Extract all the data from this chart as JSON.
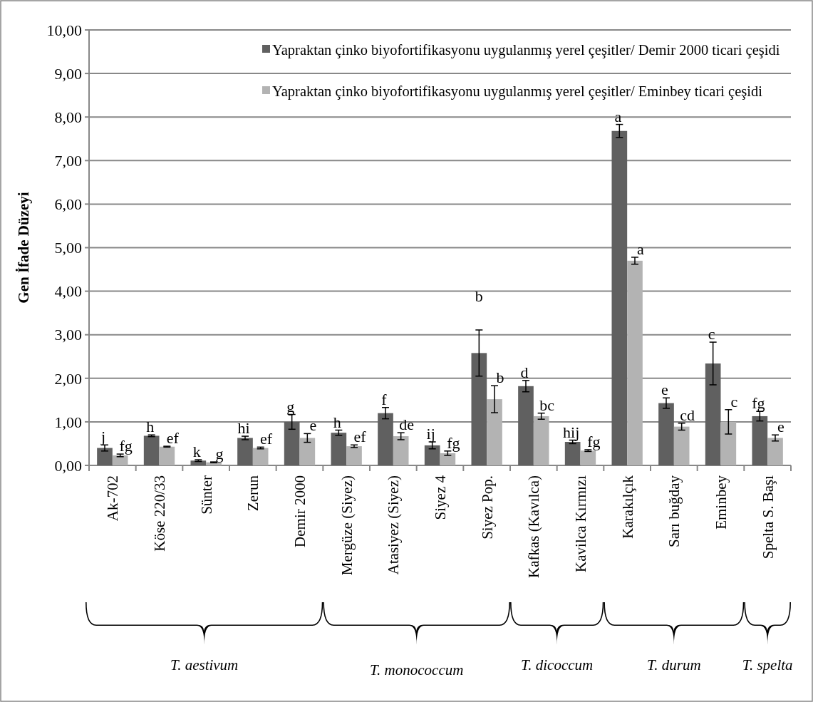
{
  "chart_data": {
    "type": "bar",
    "ylabel": "Gen İfade Düzeyi",
    "categories": [
      "Ak-702",
      "Köse 220/33",
      "Sünter",
      "Zerun",
      "Demir 2000",
      "Mergüze (Siyez)",
      "Atasiyez (Siyez)",
      "Siyez 4",
      "Siyez Pop.",
      "Kafkas (Kavılca)",
      "Kavilca Kırmızı",
      "Karakılçık",
      "Sarı buğday",
      "Eminbey",
      "Spelta S. Başı"
    ],
    "series": [
      {
        "name": "Yapraktan çinko biyofortifikasyonu uygulanmış yerel çeşitler/ Demir 2000 ticari çeşidi",
        "color": "#606060",
        "values": [
          0.4,
          0.68,
          0.11,
          0.63,
          1.0,
          0.75,
          1.2,
          0.46,
          2.58,
          1.82,
          0.54,
          7.68,
          1.43,
          2.34,
          1.13
        ],
        "errors": [
          0.07,
          0.02,
          0.02,
          0.04,
          0.17,
          0.06,
          0.13,
          0.08,
          0.53,
          0.13,
          0.04,
          0.15,
          0.12,
          0.49,
          0.11
        ]
      },
      {
        "name": "Yapraktan çinko biyofortifikasyonu uygulanmış yerel çeşitler/ Eminbey ticari çeşidi",
        "color": "#b3b3b3",
        "values": [
          0.23,
          0.43,
          0.07,
          0.4,
          0.63,
          0.44,
          0.67,
          0.28,
          1.52,
          1.13,
          0.34,
          4.7,
          0.89,
          1.0,
          0.63
        ],
        "errors": [
          0.03,
          0.01,
          0.01,
          0.02,
          0.1,
          0.03,
          0.08,
          0.05,
          0.31,
          0.07,
          0.02,
          0.08,
          0.08,
          0.28,
          0.07
        ]
      }
    ],
    "ylim": [
      0,
      10
    ],
    "yticks": [
      {
        "value": 0,
        "label": "0,00"
      },
      {
        "value": 1,
        "label": "1,00"
      },
      {
        "value": 2,
        "label": "2,00"
      },
      {
        "value": 3,
        "label": "3,00"
      },
      {
        "value": 4,
        "label": "4,00"
      },
      {
        "value": 5,
        "label": "5,00"
      },
      {
        "value": 6,
        "label": "6,00"
      },
      {
        "value": 7,
        "label": "7,00"
      },
      {
        "value": 8,
        "label": "8,00"
      },
      {
        "value": 9,
        "label": "9,00"
      },
      {
        "value": 10,
        "label": "10,00"
      }
    ],
    "grid": "y",
    "legend": "top right",
    "annotations": [
      {
        "text": "j",
        "x": "Ak-702",
        "y": 0.4
      },
      {
        "text": "fg",
        "x": "Ak-702",
        "y": 0.23
      },
      {
        "text": "h",
        "x": "Köse 220/33",
        "y": 0.68
      },
      {
        "text": "ef",
        "x": "Köse 220/33",
        "y": 0.43
      },
      {
        "text": "k",
        "x": "Sünter",
        "y": 0.11
      },
      {
        "text": "g",
        "x": "Sünter",
        "y": 0.07
      },
      {
        "text": "hi",
        "x": "Zerun",
        "y": 0.63
      },
      {
        "text": "ef",
        "x": "Zerun",
        "y": 0.4
      },
      {
        "text": "g",
        "x": "Demir 2000",
        "y": 1.0
      },
      {
        "text": "e",
        "x": "Demir 2000",
        "y": 0.63
      },
      {
        "text": "h",
        "x": "Mergüze (Siyez)",
        "y": 0.75
      },
      {
        "text": "ef",
        "x": "Mergüze (Siyez)",
        "y": 0.44
      },
      {
        "text": "f",
        "x": "Atasiyez (Siyez)",
        "y": 1.2
      },
      {
        "text": "de",
        "x": "Atasiyez (Siyez)",
        "y": 0.67
      },
      {
        "text": "ij",
        "x": "Siyez 4",
        "y": 0.46
      },
      {
        "text": "fg",
        "x": "Siyez 4",
        "y": 0.28
      },
      "b",
      {
        "text": "b",
        "x": "Siyez Pop.",
        "y": 1.52
      },
      {
        "text": "d",
        "x": "Kafkas (Kavılca)",
        "y": 1.82
      },
      {
        "text": "bc",
        "x": "Kafkas (Kavılca)",
        "y": 1.13
      },
      {
        "text": "hij",
        "x": "Kavilca Kırmızı",
        "y": 0.54
      },
      {
        "text": "fg",
        "x": "Kavilca Kırmızı",
        "y": 0.34
      },
      {
        "text": "a",
        "x": "Karakılçık",
        "y": 7.68
      },
      {
        "text": "a",
        "x": "Karakılçık",
        "y": 4.7
      },
      {
        "text": "e",
        "x": "Sarı buğday",
        "y": 1.43
      },
      {
        "text": "cd",
        "x": "Sarı buğday",
        "y": 0.89
      },
      {
        "text": "c",
        "x": "Eminbey",
        "y": 2.34
      },
      {
        "text": "c",
        "x": "Eminbey",
        "y": 1.0
      },
      {
        "text": "fg",
        "x": "Spelta S. Başı",
        "y": 1.13
      },
      {
        "text": "e",
        "x": "Spelta S. Başı",
        "y": 0.63
      },
      "T. aestivum",
      "T. monococcum",
      "T. dicoccum",
      "T. durum",
      "T. spelta"
    ]
  }
}
